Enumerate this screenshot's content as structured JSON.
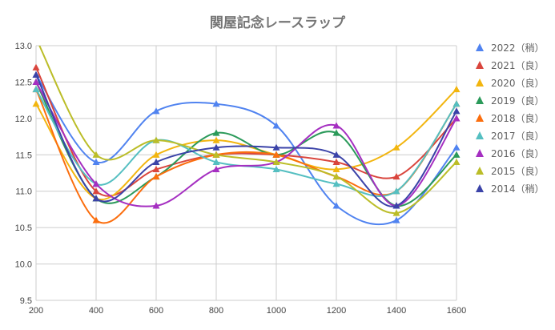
{
  "chart_data": {
    "type": "line",
    "title": "関屋記念レースラップ",
    "xlabel": "",
    "ylabel": "",
    "x": [
      200,
      400,
      600,
      800,
      1000,
      1200,
      1400,
      1600
    ],
    "xlim": [
      200,
      1600
    ],
    "ylim": [
      9.5,
      13.0
    ],
    "x_ticks": [
      "200",
      "400",
      "600",
      "800",
      "1000",
      "1200",
      "1400",
      "1600"
    ],
    "y_ticks": [
      "9.5",
      "10.0",
      "10.5",
      "11.0",
      "11.5",
      "12.0",
      "12.5",
      "13.0"
    ],
    "grid": true,
    "smooth": true,
    "legend_position": "right",
    "series": [
      {
        "name": "2022（稍）",
        "color": "#5083f0",
        "values": [
          12.6,
          11.4,
          12.1,
          12.2,
          11.9,
          10.8,
          10.6,
          11.6
        ]
      },
      {
        "name": "2021（良）",
        "color": "#d9453d",
        "values": [
          12.7,
          11.0,
          11.3,
          11.5,
          11.5,
          11.4,
          11.2,
          12.0
        ]
      },
      {
        "name": "2020（良）",
        "color": "#f2b50f",
        "values": [
          12.2,
          10.9,
          11.5,
          11.7,
          11.5,
          11.3,
          11.6,
          12.4
        ]
      },
      {
        "name": "2019（良）",
        "color": "#2b9a5a",
        "values": [
          12.5,
          10.9,
          11.2,
          11.8,
          11.5,
          11.8,
          10.8,
          11.5
        ]
      },
      {
        "name": "2018（良）",
        "color": "#fb6e0e",
        "values": [
          12.4,
          10.6,
          11.2,
          11.5,
          11.5,
          11.2,
          11.0,
          12.2
        ]
      },
      {
        "name": "2017（良）",
        "color": "#55bfc1",
        "values": [
          12.4,
          11.1,
          11.7,
          11.4,
          11.3,
          11.1,
          11.0,
          12.2
        ]
      },
      {
        "name": "2016（良）",
        "color": "#a52fc1",
        "values": [
          12.5,
          11.1,
          10.8,
          11.3,
          11.4,
          11.9,
          10.8,
          12.0
        ]
      },
      {
        "name": "2015（良）",
        "color": "#bbbd28",
        "values": [
          13.1,
          11.5,
          11.7,
          11.5,
          11.4,
          11.2,
          10.7,
          11.4
        ]
      },
      {
        "name": "2014（稍）",
        "color": "#3b43a8",
        "values": [
          12.6,
          10.9,
          11.4,
          11.6,
          11.6,
          11.5,
          10.8,
          12.1
        ]
      }
    ]
  }
}
